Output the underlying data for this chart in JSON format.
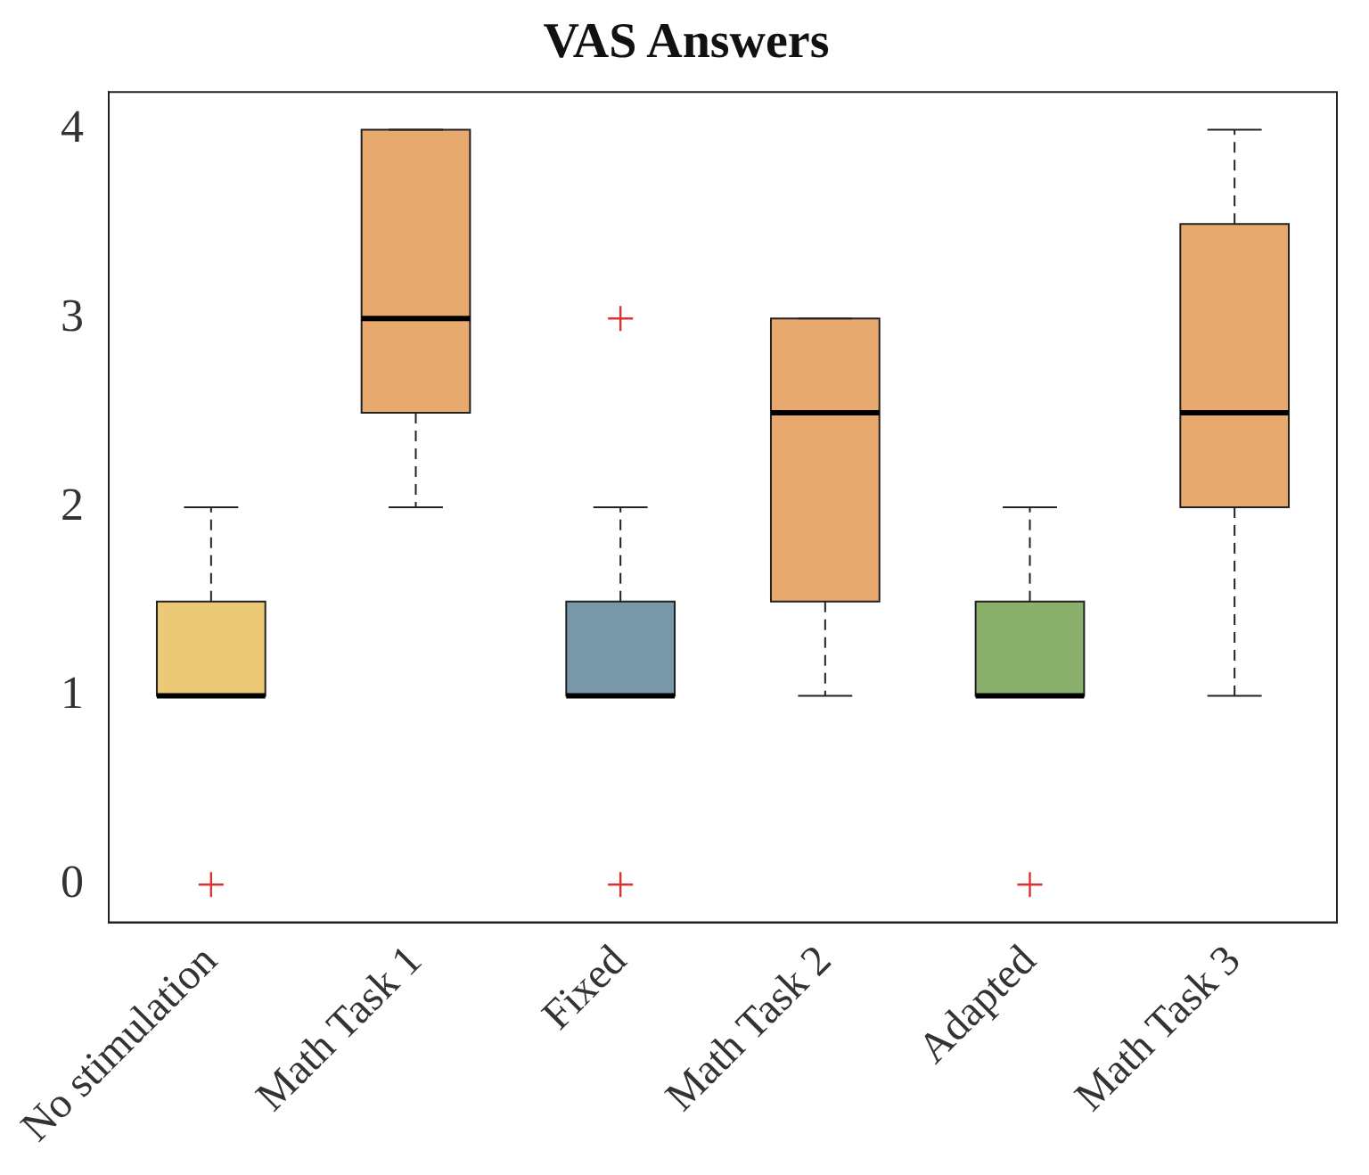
{
  "chart_data": {
    "type": "box",
    "title": "VAS Answers",
    "categories": [
      "No stimulation",
      "Math Task 1",
      "Fixed",
      "Math Task 2",
      "Adapted",
      "Math Task 3"
    ],
    "colors": [
      "#ebc977",
      "#e8a96f",
      "#7898aa",
      "#e8a96f",
      "#8ab06c",
      "#e8a96f"
    ],
    "boxes": [
      {
        "low": 1,
        "q1": 1,
        "median": 1,
        "q3": 1.5,
        "high": 2,
        "outliers": [
          0
        ]
      },
      {
        "low": 2,
        "q1": 2.5,
        "median": 3,
        "q3": 4,
        "high": 4
      },
      {
        "low": 1,
        "q1": 1,
        "median": 1,
        "q3": 1.5,
        "high": 2,
        "outliers": [
          0,
          3
        ]
      },
      {
        "low": 1,
        "q1": 1.5,
        "median": 2.5,
        "q3": 3,
        "high": 3
      },
      {
        "low": 1,
        "q1": 1,
        "median": 1,
        "q3": 1.5,
        "high": 2,
        "outliers": [
          0
        ]
      },
      {
        "low": 1,
        "q1": 2,
        "median": 2.5,
        "q3": 3.5,
        "high": 4
      }
    ],
    "ylim": [
      -0.2,
      4.2
    ],
    "yticks": [
      0,
      1,
      2,
      3,
      4
    ],
    "grid": false,
    "legend": false
  }
}
